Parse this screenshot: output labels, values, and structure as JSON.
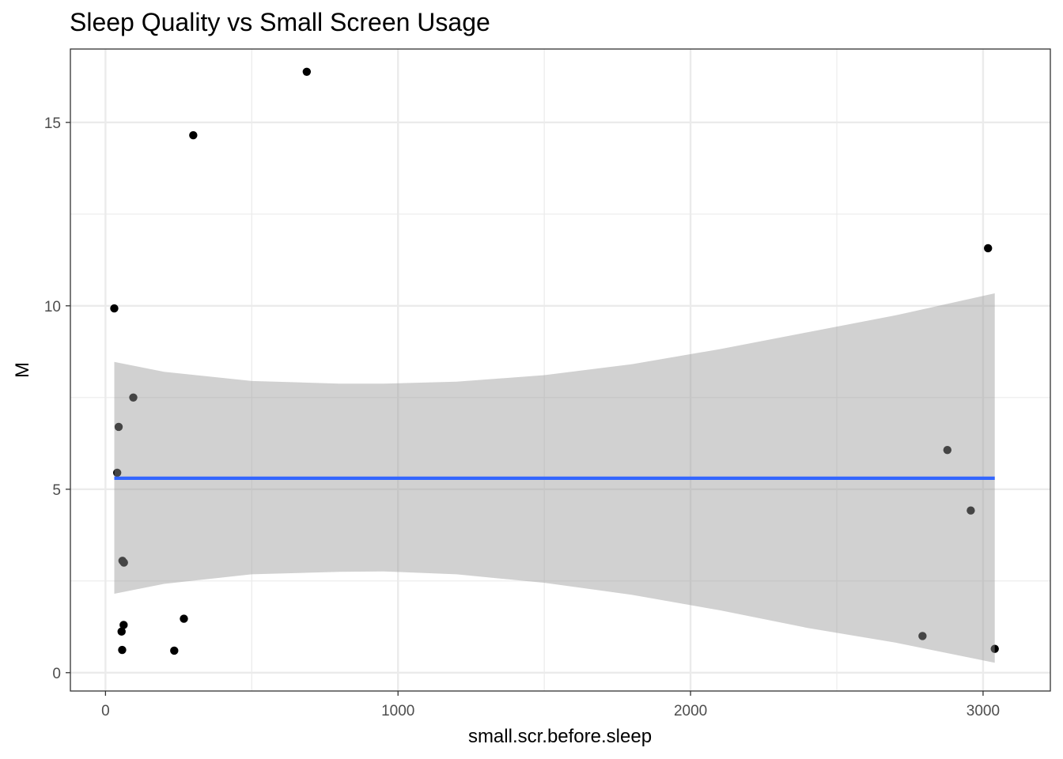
{
  "chart_data": {
    "type": "scatter",
    "title": "Sleep Quality vs Small Screen Usage",
    "xlabel": "small.scr.before.sleep",
    "ylabel": "M",
    "xlim": [
      -120,
      3230
    ],
    "ylim": [
      -0.5,
      17.0
    ],
    "x_ticks": [
      0,
      1000,
      2000,
      3000
    ],
    "x_tick_labels": [
      "0",
      "1000",
      "2000",
      "3000"
    ],
    "x_minor": [
      500,
      1500,
      2500
    ],
    "y_ticks": [
      0,
      5,
      10,
      15
    ],
    "y_tick_labels": [
      "0",
      "5",
      "10",
      "15"
    ],
    "y_minor": [
      2.5,
      7.5,
      12.5
    ],
    "grid": true,
    "points": [
      {
        "x": 30,
        "y": 9.93
      },
      {
        "x": 45,
        "y": 6.7
      },
      {
        "x": 40,
        "y": 5.45
      },
      {
        "x": 95,
        "y": 7.5
      },
      {
        "x": 58,
        "y": 3.05
      },
      {
        "x": 63,
        "y": 3.0
      },
      {
        "x": 62,
        "y": 1.3
      },
      {
        "x": 55,
        "y": 1.12
      },
      {
        "x": 57,
        "y": 0.62
      },
      {
        "x": 235,
        "y": 0.6
      },
      {
        "x": 268,
        "y": 1.47
      },
      {
        "x": 300,
        "y": 14.65
      },
      {
        "x": 688,
        "y": 16.38
      },
      {
        "x": 2793,
        "y": 1.0
      },
      {
        "x": 2878,
        "y": 6.07
      },
      {
        "x": 2958,
        "y": 4.42
      },
      {
        "x": 3017,
        "y": 11.57
      },
      {
        "x": 3040,
        "y": 0.65
      }
    ],
    "trend_line": {
      "x": [
        30,
        3040
      ],
      "y": [
        5.3,
        5.3
      ],
      "color": "#3366ff"
    },
    "confidence_band": {
      "x": [
        30,
        200,
        500,
        800,
        950,
        1200,
        1500,
        1800,
        2100,
        2400,
        2700,
        3040
      ],
      "lower": [
        2.15,
        2.42,
        2.68,
        2.75,
        2.76,
        2.68,
        2.45,
        2.12,
        1.7,
        1.22,
        0.82,
        0.27
      ],
      "upper": [
        8.47,
        8.2,
        7.95,
        7.88,
        7.88,
        7.93,
        8.11,
        8.41,
        8.82,
        9.28,
        9.74,
        10.34
      ],
      "color": "#999999"
    },
    "point_color": "#000000"
  }
}
